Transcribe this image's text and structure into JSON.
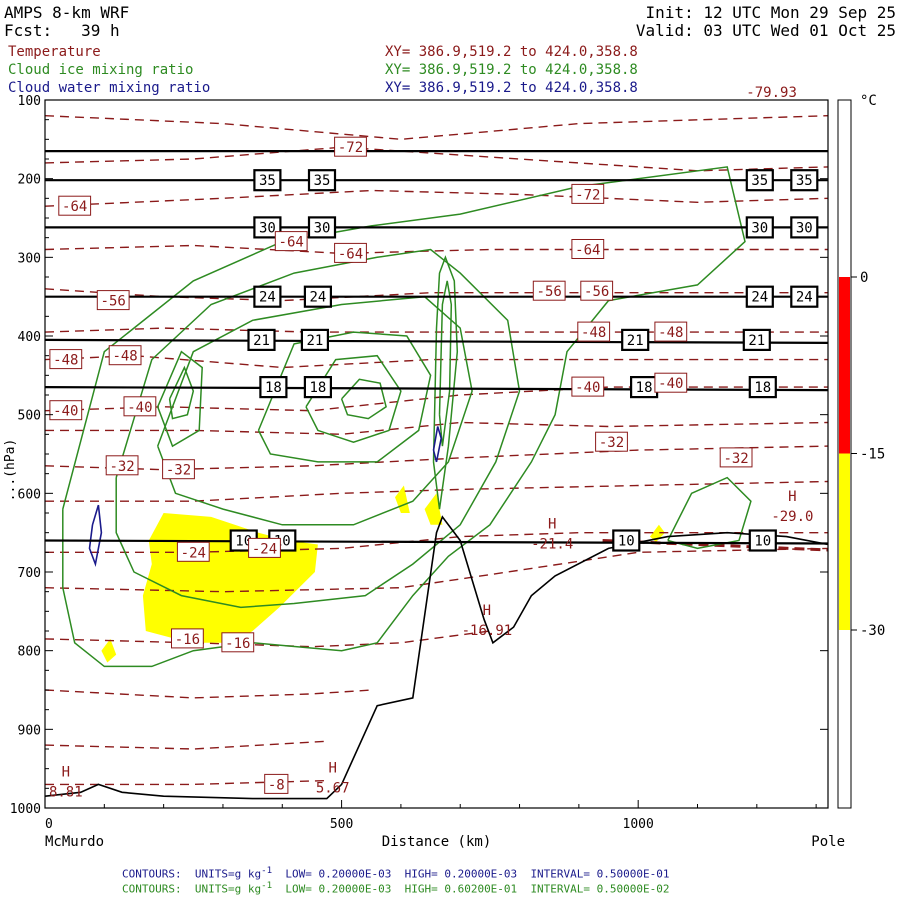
{
  "header": {
    "model": "AMPS 8-km WRF",
    "fcst_label": "Fcst:",
    "fcst_value": "39 h",
    "init": "Init: 12 UTC Mon 29 Sep 25",
    "valid": "Valid: 03 UTC Wed 01 Oct 25"
  },
  "fields": [
    {
      "name": "Temperature",
      "xy": "XY= 386.9,519.2 to 424.0,358.8",
      "color": "#8b1a1a"
    },
    {
      "name": "Cloud ice mixing ratio",
      "xy": "XY= 386.9,519.2 to 424.0,358.8",
      "color": "#2e8b22"
    },
    {
      "name": "Cloud water mixing ratio",
      "xy": "XY= 386.9,519.2 to 424.0,358.8",
      "color": "#1a1a8b"
    }
  ],
  "footer": [
    {
      "label": "CONTOURS:",
      "units": "UNITS=g kg",
      "low": "LOW= 0.20000E-03",
      "high": "HIGH= 0.20000E-03",
      "interval": "INTERVAL= 0.50000E-01",
      "color": "#1a1a8b"
    },
    {
      "label": "CONTOURS:",
      "units": "UNITS=g kg",
      "low": "LOW= 0.20000E-03",
      "high": "HIGH= 0.60200E-01",
      "interval": "INTERVAL= 0.50000E-02",
      "color": "#2e8b22"
    }
  ],
  "chart_data": {
    "type": "cross-section",
    "x_axis": {
      "label": "Distance (km)",
      "ticks": [
        0,
        500,
        1000
      ],
      "tick_labels": [
        "0",
        "500",
        "1000"
      ],
      "range": [
        0,
        1320
      ],
      "left_endpoint": "McMurdo",
      "right_endpoint": "Pole"
    },
    "y_axis": {
      "ylabel_partial": "...(hPa)",
      "ticks": [
        100,
        200,
        300,
        400,
        500,
        600,
        700,
        800,
        900,
        1000
      ],
      "tick_labels": [
        "100",
        "200",
        "300",
        "400",
        "500",
        "600",
        "700",
        "800",
        "900",
        "1000"
      ],
      "range": [
        100,
        1000
      ],
      "inverted": true
    },
    "colorbar": {
      "unit": "°C",
      "ticks": [
        "0",
        "-15",
        "-30"
      ],
      "segments": [
        {
          "from": 0,
          "to": -15,
          "color": "#ff0000"
        },
        {
          "from": -15,
          "to": -30,
          "color": "#ffff00"
        }
      ]
    },
    "black_lines": [
      {
        "p": 165,
        "labels": []
      },
      {
        "p": 202,
        "labels": [
          {
            "x": 375,
            "text": "35"
          },
          {
            "x": 467,
            "text": "35"
          },
          {
            "x": 1205,
            "text": "35"
          },
          {
            "x": 1280,
            "text": "35"
          }
        ]
      },
      {
        "p": 262,
        "labels": [
          {
            "x": 375,
            "text": "30"
          },
          {
            "x": 467,
            "text": "30"
          },
          {
            "x": 1205,
            "text": "30"
          },
          {
            "x": 1280,
            "text": "30"
          }
        ]
      },
      {
        "p": 350,
        "labels": [
          {
            "x": 375,
            "text": "24"
          },
          {
            "x": 460,
            "text": "24"
          },
          {
            "x": 1205,
            "text": "24"
          },
          {
            "x": 1280,
            "text": "24"
          }
        ]
      },
      {
        "p": 405,
        "labels": [
          {
            "x": 365,
            "text": "21"
          },
          {
            "x": 455,
            "text": "21"
          },
          {
            "x": 995,
            "text": "21"
          },
          {
            "x": 1200,
            "text": "21"
          }
        ]
      },
      {
        "p": 465,
        "labels": [
          {
            "x": 385,
            "text": "18"
          },
          {
            "x": 460,
            "text": "18"
          },
          {
            "x": 1010,
            "text": "18"
          },
          {
            "x": 1210,
            "text": "18"
          }
        ]
      },
      {
        "p": 660,
        "labels": [
          {
            "x": 335,
            "text": "10"
          },
          {
            "x": 400,
            "text": "10"
          },
          {
            "x": 980,
            "text": "10"
          },
          {
            "x": 1210,
            "text": "10"
          }
        ]
      }
    ],
    "temperature_labels": [
      {
        "x": 515,
        "p": 160,
        "text": "-72"
      },
      {
        "x": 915,
        "p": 220,
        "text": "-72"
      },
      {
        "x": 50,
        "p": 235,
        "text": "-64"
      },
      {
        "x": 415,
        "p": 280,
        "text": "-64"
      },
      {
        "x": 515,
        "p": 295,
        "text": "-64"
      },
      {
        "x": 915,
        "p": 290,
        "text": "-64"
      },
      {
        "x": 115,
        "p": 355,
        "text": "-56"
      },
      {
        "x": 850,
        "p": 343,
        "text": "-56"
      },
      {
        "x": 930,
        "p": 343,
        "text": "-56"
      },
      {
        "x": 35,
        "p": 430,
        "text": "-48"
      },
      {
        "x": 135,
        "p": 425,
        "text": "-48"
      },
      {
        "x": 925,
        "p": 395,
        "text": "-48"
      },
      {
        "x": 1055,
        "p": 395,
        "text": "-48"
      },
      {
        "x": 35,
        "p": 495,
        "text": "-40"
      },
      {
        "x": 160,
        "p": 490,
        "text": "-40"
      },
      {
        "x": 915,
        "p": 465,
        "text": "-40"
      },
      {
        "x": 1055,
        "p": 460,
        "text": "-40"
      },
      {
        "x": 130,
        "p": 565,
        "text": "-32"
      },
      {
        "x": 225,
        "p": 570,
        "text": "-32"
      },
      {
        "x": 955,
        "p": 535,
        "text": "-32"
      },
      {
        "x": 1165,
        "p": 555,
        "text": "-32"
      },
      {
        "x": 250,
        "p": 675,
        "text": "-24"
      },
      {
        "x": 370,
        "p": 670,
        "text": "-24"
      },
      {
        "x": 240,
        "p": 785,
        "text": "-16"
      },
      {
        "x": 325,
        "p": 790,
        "text": "-16"
      },
      {
        "x": 390,
        "p": 970,
        "text": "-8"
      },
      {
        "x": 1225,
        "p": 90,
        "text": "-79.93"
      }
    ],
    "extrema": [
      {
        "x": 35,
        "p": 970,
        "mark": "H",
        "value": "8.81"
      },
      {
        "x": 485,
        "p": 965,
        "mark": "H",
        "value": "5.67"
      },
      {
        "x": 745,
        "p": 765,
        "mark": "H",
        "value": "-16.91"
      },
      {
        "x": 855,
        "p": 655,
        "mark": "H",
        "value": "-21.4"
      },
      {
        "x": 1260,
        "p": 620,
        "mark": "H",
        "value": "-29.0"
      }
    ]
  }
}
